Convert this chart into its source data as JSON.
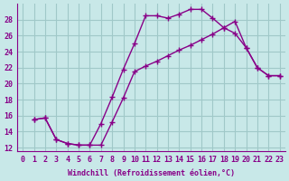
{
  "xlabel": "Windchill (Refroidissement éolien,°C)",
  "bg_color": "#c8e8e8",
  "grid_color": "#a0c8c8",
  "line_color": "#880088",
  "xlim": [
    -0.5,
    23.5
  ],
  "ylim": [
    11.5,
    30
  ],
  "xticks": [
    0,
    1,
    2,
    3,
    4,
    5,
    6,
    7,
    8,
    9,
    10,
    11,
    12,
    13,
    14,
    15,
    16,
    17,
    18,
    19,
    20,
    21,
    22,
    23
  ],
  "yticks": [
    12,
    14,
    16,
    18,
    20,
    22,
    24,
    26,
    28
  ],
  "curve1_x": [
    1,
    2,
    3,
    4,
    5,
    6,
    7,
    8,
    9,
    10,
    11,
    12,
    13,
    14,
    15,
    16,
    17,
    18,
    19,
    20,
    21,
    22,
    23
  ],
  "curve1_y": [
    15.5,
    15.7,
    13.0,
    12.5,
    12.3,
    12.3,
    12.3,
    15.2,
    18.2,
    21.5,
    22.2,
    22.8,
    23.5,
    24.2,
    24.8,
    25.5,
    26.2,
    27.0,
    27.8,
    24.5,
    22.0,
    21.0,
    21.0
  ],
  "curve2_x": [
    1,
    2,
    3,
    4,
    5,
    6,
    7,
    8,
    9,
    10,
    11,
    12,
    13,
    14,
    15,
    16,
    17,
    18,
    19,
    20,
    21,
    22,
    23
  ],
  "curve2_y": [
    15.5,
    15.7,
    13.0,
    12.5,
    12.3,
    12.3,
    15.0,
    18.3,
    21.8,
    25.0,
    28.5,
    28.5,
    28.2,
    28.7,
    29.3,
    29.3,
    28.2,
    27.0,
    26.3,
    24.5,
    22.0,
    21.0,
    21.0
  ]
}
